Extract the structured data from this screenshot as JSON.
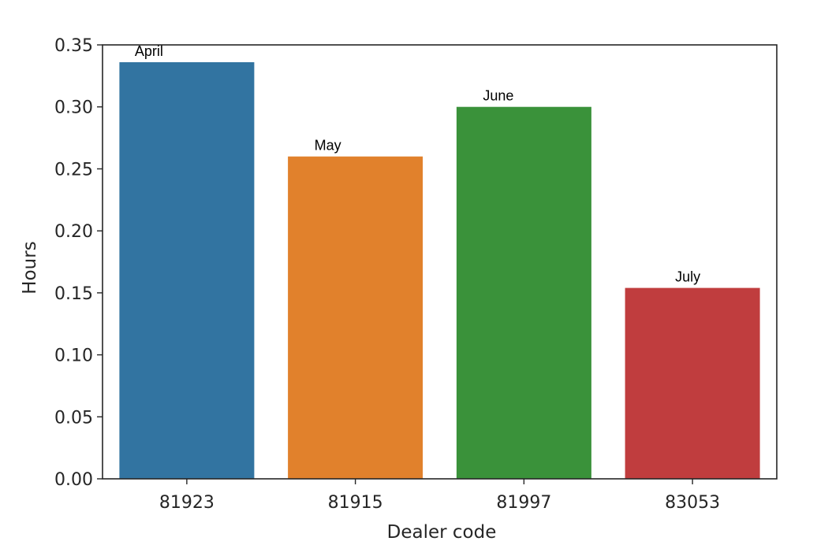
{
  "chart_data": {
    "type": "bar",
    "title": "",
    "xlabel": "Dealer code",
    "ylabel": "Hours",
    "categories": [
      "81923",
      "81915",
      "81997",
      "83053"
    ],
    "values": [
      0.336,
      0.26,
      0.3,
      0.154
    ],
    "bar_annotations": [
      "April",
      "May",
      "June",
      "July"
    ],
    "bar_colors": [
      "#3274a1",
      "#e1812c",
      "#3a923a",
      "#c03d3e"
    ],
    "ylim": [
      0,
      0.35
    ],
    "yticks": [
      "0.00",
      "0.05",
      "0.10",
      "0.15",
      "0.20",
      "0.25",
      "0.30",
      "0.35"
    ],
    "grid": false,
    "legend": "none"
  }
}
